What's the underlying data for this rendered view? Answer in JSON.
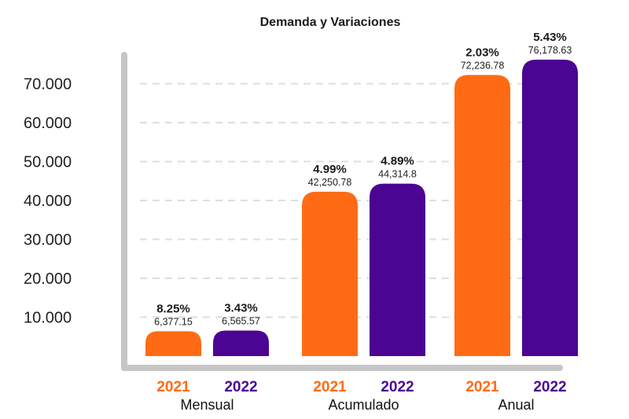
{
  "chart_data": {
    "type": "bar",
    "title": "Demanda y Variaciones",
    "xlabel": "",
    "ylabel": "",
    "ylim": [
      0,
      80000
    ],
    "yticks": [
      10000,
      20000,
      30000,
      40000,
      50000,
      60000,
      70000
    ],
    "ytick_labels": [
      "10.000",
      "20.000",
      "30.000",
      "40.000",
      "50.000",
      "60.000",
      "70.000"
    ],
    "grid": true,
    "legend": "none",
    "colors": {
      "2021": "#ff6b14",
      "2022": "#4b0592"
    },
    "groups": [
      {
        "name": "Mensual",
        "bars": [
          {
            "year": "2021",
            "value": 6377.15,
            "value_label": "6,377.15",
            "pct": "8.25%"
          },
          {
            "year": "2022",
            "value": 6565.57,
            "value_label": "6,565.57",
            "pct": "3.43%"
          }
        ]
      },
      {
        "name": "Acumulado",
        "bars": [
          {
            "year": "2021",
            "value": 42250.78,
            "value_label": "42,250.78",
            "pct": "4.99%"
          },
          {
            "year": "2022",
            "value": 44314.8,
            "value_label": "44,314.8",
            "pct": "4.89%"
          }
        ]
      },
      {
        "name": "Anual",
        "bars": [
          {
            "year": "2021",
            "value": 72236.78,
            "value_label": "72,236.78",
            "pct": "2.03%"
          },
          {
            "year": "2022",
            "value": 76178.63,
            "value_label": "76,178.63",
            "pct": "5.43%"
          }
        ]
      }
    ]
  }
}
